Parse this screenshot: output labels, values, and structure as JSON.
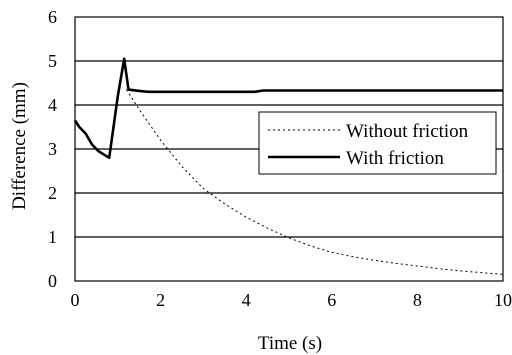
{
  "chart_data": {
    "type": "line",
    "title": "",
    "xlabel": "Time (s)",
    "ylabel": "Difference (mm)",
    "xlim": [
      0,
      10
    ],
    "ylim": [
      0,
      6
    ],
    "xticks": [
      "0",
      "2",
      "4",
      "6",
      "8",
      "10"
    ],
    "yticks": [
      "0",
      "1",
      "2",
      "3",
      "4",
      "5",
      "6"
    ],
    "grid": "horizontal",
    "legend_position": "right",
    "series": [
      {
        "name": "Without friction",
        "style": "dotted",
        "color": "#000000",
        "points": [
          [
            1.2,
            4.35
          ],
          [
            1.5,
            3.9
          ],
          [
            2,
            3.2
          ],
          [
            2.5,
            2.6
          ],
          [
            3,
            2.1
          ],
          [
            3.5,
            1.75
          ],
          [
            4,
            1.45
          ],
          [
            4.5,
            1.2
          ],
          [
            5,
            0.98
          ],
          [
            5.5,
            0.8
          ],
          [
            6,
            0.65
          ],
          [
            6.5,
            0.55
          ],
          [
            7,
            0.47
          ],
          [
            7.5,
            0.4
          ],
          [
            8,
            0.34
          ],
          [
            8.5,
            0.28
          ],
          [
            9,
            0.23
          ],
          [
            9.5,
            0.19
          ],
          [
            10,
            0.15
          ]
        ]
      },
      {
        "name": "With friction",
        "style": "solid",
        "color": "#000000",
        "points": [
          [
            0,
            3.65
          ],
          [
            0.1,
            3.5
          ],
          [
            0.25,
            3.35
          ],
          [
            0.4,
            3.1
          ],
          [
            0.55,
            2.95
          ],
          [
            0.8,
            2.8
          ],
          [
            1.0,
            4.2
          ],
          [
            1.15,
            5.05
          ],
          [
            1.25,
            4.35
          ],
          [
            1.5,
            4.32
          ],
          [
            1.7,
            4.3
          ],
          [
            3,
            4.3
          ],
          [
            4.2,
            4.3
          ],
          [
            4.4,
            4.33
          ],
          [
            10,
            4.33
          ]
        ]
      }
    ]
  }
}
